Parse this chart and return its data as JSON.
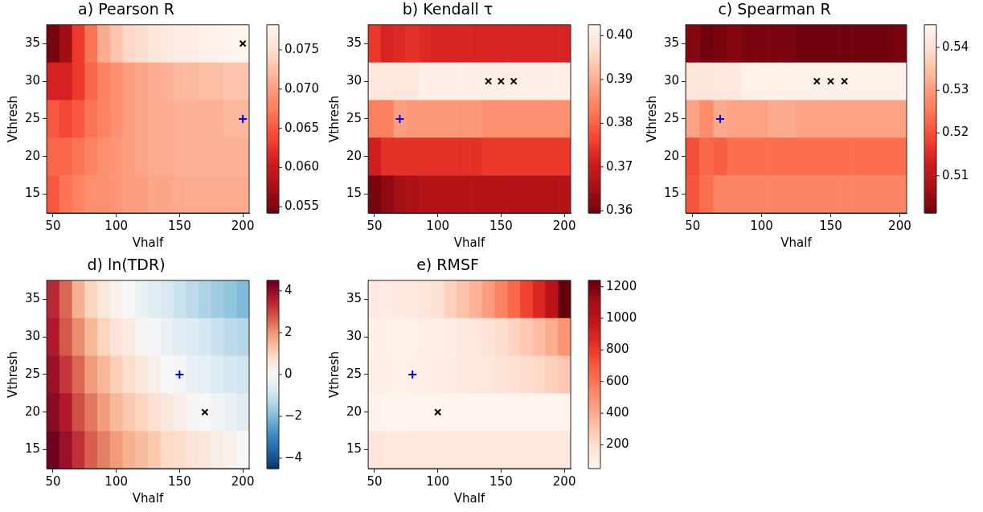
{
  "chart_data": [
    {
      "type": "heatmap",
      "title": "a) Pearson R",
      "xlabel": "Vhalf",
      "ylabel": "Vthresh",
      "xlim": [
        45,
        205
      ],
      "xticks": [
        50,
        100,
        150,
        200
      ],
      "ylim": [
        12.5,
        37.5
      ],
      "yticks": [
        15,
        20,
        25,
        30,
        35
      ],
      "cells": [
        [
          0.055,
          0.057,
          0.063,
          0.067,
          0.071,
          0.073,
          0.0745,
          0.075,
          0.076,
          0.0765,
          0.077,
          0.077,
          0.0775,
          0.0775,
          0.078,
          0.078
        ],
        [
          0.061,
          0.061,
          0.063,
          0.066,
          0.068,
          0.069,
          0.07,
          0.0705,
          0.071,
          0.0715,
          0.072,
          0.072,
          0.0725,
          0.0725,
          0.073,
          0.073
        ],
        [
          0.065,
          0.064,
          0.065,
          0.067,
          0.068,
          0.069,
          0.07,
          0.0705,
          0.071,
          0.071,
          0.0715,
          0.0715,
          0.0715,
          0.0715,
          0.072,
          0.072
        ],
        [
          0.066,
          0.066,
          0.067,
          0.068,
          0.069,
          0.0695,
          0.07,
          0.0705,
          0.071,
          0.071,
          0.0715,
          0.0715,
          0.0715,
          0.0715,
          0.0715,
          0.0715
        ],
        [
          0.065,
          0.067,
          0.068,
          0.069,
          0.069,
          0.0695,
          0.07,
          0.07,
          0.0705,
          0.0705,
          0.071,
          0.071,
          0.071,
          0.071,
          0.071,
          0.071
        ]
      ],
      "clim": [
        0.0542,
        0.0782
      ],
      "cticks": [
        0.055,
        {
          "value": 0.06,
          "label": "0.060"
        },
        0.065,
        {
          "value": 0.07,
          "label": "0.070"
        },
        0.075
      ],
      "colors": [
        "#67000d",
        "#a50f15",
        "#cb181d",
        "#ef3b2c",
        "#fb6a4a",
        "#fc9272",
        "#fcbba1",
        "#fee0d2",
        "#fff5f0"
      ],
      "series": [
        {
          "type": "scatter",
          "marker": "cross",
          "color": "#000000",
          "x": [
            200
          ],
          "values": [
            35
          ]
        },
        {
          "type": "scatter",
          "marker": "plus",
          "color": "#0000ff",
          "x": [
            200
          ],
          "values": [
            25
          ]
        }
      ]
    },
    {
      "type": "heatmap",
      "title": "b) Kendall τ",
      "xlabel": "Vhalf",
      "ylabel": "Vthresh",
      "xlim": [
        45,
        205
      ],
      "xticks": [
        50,
        100,
        150,
        200
      ],
      "ylim": [
        12.5,
        37.5
      ],
      "yticks": [
        15,
        20,
        25,
        30,
        35
      ],
      "cells": [
        [
          0.375,
          0.372,
          0.373,
          0.374,
          0.373,
          0.372,
          0.372,
          0.372,
          0.372,
          0.372,
          0.372,
          0.372,
          0.372,
          0.372,
          0.372,
          0.372
        ],
        [
          0.399,
          0.399,
          0.399,
          0.399,
          0.401,
          0.401,
          0.401,
          0.401,
          0.401,
          0.401,
          0.401,
          0.401,
          0.401,
          0.401,
          0.401,
          0.401
        ],
        [
          0.384,
          0.384,
          0.388,
          0.387,
          0.387,
          0.387,
          0.387,
          0.387,
          0.387,
          0.386,
          0.386,
          0.386,
          0.386,
          0.386,
          0.386,
          0.386
        ],
        [
          0.371,
          0.374,
          0.374,
          0.374,
          0.374,
          0.374,
          0.374,
          0.374,
          0.374,
          0.375,
          0.375,
          0.375,
          0.375,
          0.375,
          0.375,
          0.375
        ],
        [
          0.361,
          0.363,
          0.365,
          0.366,
          0.367,
          0.367,
          0.367,
          0.367,
          0.367,
          0.367,
          0.367,
          0.367,
          0.367,
          0.367,
          0.367,
          0.367
        ]
      ],
      "clim": [
        0.3595,
        0.4025
      ],
      "cticks": [
        0.36,
        0.37,
        0.38,
        0.39,
        {
          "value": 0.4,
          "label": "0.40"
        }
      ],
      "colors": [
        "#67000d",
        "#a50f15",
        "#cb181d",
        "#ef3b2c",
        "#fb6a4a",
        "#fc9272",
        "#fcbba1",
        "#fee0d2",
        "#fff5f0"
      ],
      "series": [
        {
          "type": "scatter",
          "marker": "cross",
          "color": "#000000",
          "x": [
            140,
            150,
            160
          ],
          "values": [
            30,
            30,
            30
          ]
        },
        {
          "type": "scatter",
          "marker": "plus",
          "color": "#0000ff",
          "x": [
            70
          ],
          "values": [
            25
          ]
        }
      ]
    },
    {
      "type": "heatmap",
      "title": "c) Spearman R",
      "xlabel": "Vhalf",
      "ylabel": "Vthresh",
      "xlim": [
        45,
        205
      ],
      "xticks": [
        50,
        100,
        150,
        200
      ],
      "ylim": [
        12.5,
        37.5
      ],
      "yticks": [
        15,
        20,
        25,
        30,
        35
      ],
      "cells": [
        [
          0.504,
          0.502,
          0.503,
          0.504,
          0.503,
          0.503,
          0.503,
          0.503,
          0.502,
          0.502,
          0.502,
          0.502,
          0.502,
          0.502,
          0.502,
          0.503
        ],
        [
          0.541,
          0.541,
          0.542,
          0.542,
          0.544,
          0.544,
          0.544,
          0.544,
          0.544,
          0.544,
          0.544,
          0.544,
          0.544,
          0.544,
          0.544,
          0.544
        ],
        [
          0.531,
          0.528,
          0.532,
          0.531,
          0.531,
          0.531,
          0.532,
          0.532,
          0.531,
          0.531,
          0.531,
          0.531,
          0.531,
          0.531,
          0.531,
          0.531
        ],
        [
          0.52,
          0.523,
          0.522,
          0.524,
          0.524,
          0.524,
          0.524,
          0.524,
          0.524,
          0.524,
          0.524,
          0.524,
          0.524,
          0.524,
          0.524,
          0.524
        ],
        [
          0.521,
          0.524,
          0.527,
          0.527,
          0.527,
          0.527,
          0.527,
          0.527,
          0.527,
          0.527,
          0.527,
          0.527,
          0.527,
          0.527,
          0.527,
          0.527
        ]
      ],
      "clim": [
        0.5013,
        0.5453
      ],
      "cticks": [
        0.51,
        0.52,
        0.53,
        0.54
      ],
      "colors": [
        "#67000d",
        "#a50f15",
        "#cb181d",
        "#ef3b2c",
        "#fb6a4a",
        "#fc9272",
        "#fcbba1",
        "#fee0d2",
        "#fff5f0"
      ],
      "series": [
        {
          "type": "scatter",
          "marker": "cross",
          "color": "#000000",
          "x": [
            140,
            150,
            160
          ],
          "values": [
            30,
            30,
            30
          ]
        },
        {
          "type": "scatter",
          "marker": "plus",
          "color": "#0000ff",
          "x": [
            70
          ],
          "values": [
            25
          ]
        }
      ]
    },
    {
      "type": "heatmap",
      "title": "d) ln(TDR)",
      "xlabel": "Vhalf",
      "ylabel": "Vthresh",
      "xlim": [
        45,
        205
      ],
      "xticks": [
        50,
        100,
        150,
        200
      ],
      "ylim": [
        12.5,
        37.5
      ],
      "yticks": [
        15,
        20,
        25,
        30,
        35
      ],
      "cells": [
        [
          3.4,
          2.6,
          1.6,
          1.0,
          0.5,
          0.2,
          0.0,
          -0.3,
          -0.5,
          -0.7,
          -1.0,
          -1.2,
          -1.4,
          -1.6,
          -1.8,
          -2.0
        ],
        [
          3.6,
          2.8,
          2.1,
          1.5,
          1.0,
          0.6,
          0.4,
          0.1,
          -0.1,
          -0.3,
          -0.5,
          -0.6,
          -0.8,
          -1.0,
          -1.2,
          -1.3
        ],
        [
          3.9,
          3.2,
          2.6,
          1.9,
          1.5,
          1.1,
          0.8,
          0.5,
          0.3,
          0.0,
          -0.1,
          -0.3,
          -0.4,
          -0.6,
          -0.8,
          -0.9
        ],
        [
          4.1,
          3.6,
          2.9,
          2.4,
          1.9,
          1.5,
          1.2,
          1.0,
          0.7,
          0.5,
          0.3,
          0.1,
          0.0,
          -0.2,
          -0.3,
          -0.5
        ],
        [
          4.4,
          3.9,
          3.3,
          2.7,
          2.3,
          1.9,
          1.6,
          1.4,
          1.2,
          0.9,
          0.8,
          0.6,
          0.5,
          0.3,
          0.2,
          0.0
        ]
      ],
      "clim": [
        -4.5,
        4.5
      ],
      "cticks": [
        {
          "value": -4,
          "label": "−4"
        },
        {
          "value": -2,
          "label": "−2"
        },
        0,
        2,
        4
      ],
      "colors": [
        "#053061",
        "#2166ac",
        "#4393c3",
        "#92c5de",
        "#d1e5f0",
        "#f7f7f7",
        "#fddbc7",
        "#f4a582",
        "#d6604d",
        "#b2182b",
        "#67001f"
      ],
      "series": [
        {
          "type": "scatter",
          "marker": "cross",
          "color": "#000000",
          "x": [
            170
          ],
          "values": [
            20
          ]
        },
        {
          "type": "scatter",
          "marker": "plus",
          "color": "#0000ff",
          "x": [
            150
          ],
          "values": [
            25
          ]
        }
      ]
    },
    {
      "type": "heatmap",
      "title": "e) RMSF",
      "xlabel": "Vhalf",
      "ylabel": "Vthresh",
      "xlim": [
        45,
        205
      ],
      "xticks": [
        50,
        100,
        150,
        200
      ],
      "ylim": [
        12.5,
        37.5
      ],
      "yticks": [
        15,
        20,
        25,
        30,
        35
      ],
      "cells": [
        [
          130,
          120,
          130,
          140,
          160,
          190,
          260,
          320,
          380,
          460,
          550,
          650,
          770,
          880,
          1010,
          1240
        ],
        [
          90,
          80,
          80,
          80,
          90,
          100,
          110,
          130,
          150,
          180,
          210,
          250,
          290,
          340,
          400,
          490
        ],
        [
          100,
          90,
          80,
          90,
          100,
          110,
          120,
          130,
          140,
          150,
          170,
          190,
          210,
          230,
          260,
          300
        ],
        [
          70,
          60,
          60,
          60,
          60,
          60,
          60,
          60,
          60,
          60,
          60,
          60,
          60,
          60,
          60,
          60
        ],
        [
          160,
          150,
          140,
          140,
          140,
          140,
          140,
          140,
          140,
          140,
          140,
          140,
          140,
          140,
          140,
          140
        ]
      ],
      "clim": [
        50,
        1240
      ],
      "cticks": [
        200,
        400,
        600,
        800,
        1000,
        1200
      ],
      "colors": [
        "#fff5f0",
        "#fee0d2",
        "#fcbba1",
        "#fc9272",
        "#fb6a4a",
        "#ef3b2c",
        "#cb181d",
        "#a50f15",
        "#67000d"
      ],
      "series": [
        {
          "type": "scatter",
          "marker": "cross",
          "color": "#000000",
          "x": [
            100
          ],
          "values": [
            20
          ]
        },
        {
          "type": "scatter",
          "marker": "plus",
          "color": "#0000ff",
          "x": [
            80
          ],
          "values": [
            25
          ]
        }
      ]
    }
  ]
}
